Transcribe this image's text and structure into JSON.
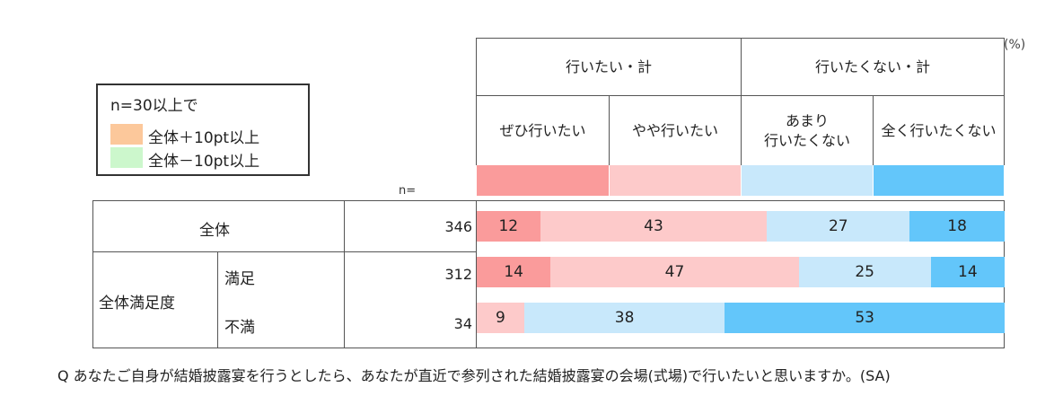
{
  "unit": "(%)",
  "legend": {
    "title": "n=30以上で",
    "items": [
      {
        "label": "全体＋10pt以上",
        "color": "#fcc89b"
      },
      {
        "label": "全体－10pt以上",
        "color": "#ccf7cc"
      }
    ]
  },
  "n_label": "n=",
  "header": {
    "groups": [
      "行いたい・計",
      "行いたくない・計"
    ],
    "subs": [
      "ぜひ行いたい",
      "やや行いたい",
      "あまり\n行いたくない",
      "全く行いたくない"
    ]
  },
  "row_labels": {
    "total": "全体",
    "group": "全体満足度",
    "satisfied": "満足",
    "dissatisfied": "不満"
  },
  "question": "Q  あなたご自身が結婚披露宴を行うとしたら、あなたが直近で参列された結婚披露宴の会場(式場)で行いたいと思いますか。(SA)",
  "chart_data": {
    "type": "bar",
    "orientation": "horizontal",
    "stacked": true,
    "unit": "%",
    "categories": [
      "全体",
      "満足",
      "不満"
    ],
    "n": [
      346,
      312,
      34
    ],
    "series": [
      {
        "name": "ぜひ行いたい",
        "color": "#fa9b9b",
        "values": [
          12,
          14,
          0
        ]
      },
      {
        "name": "やや行いたい",
        "color": "#fdcaca",
        "values": [
          43,
          47,
          9
        ]
      },
      {
        "name": "あまり行いたくない",
        "color": "#c8e8fb",
        "values": [
          27,
          25,
          38
        ]
      },
      {
        "name": "全く行いたくない",
        "color": "#63c6fa",
        "values": [
          18,
          14,
          53
        ]
      }
    ]
  }
}
